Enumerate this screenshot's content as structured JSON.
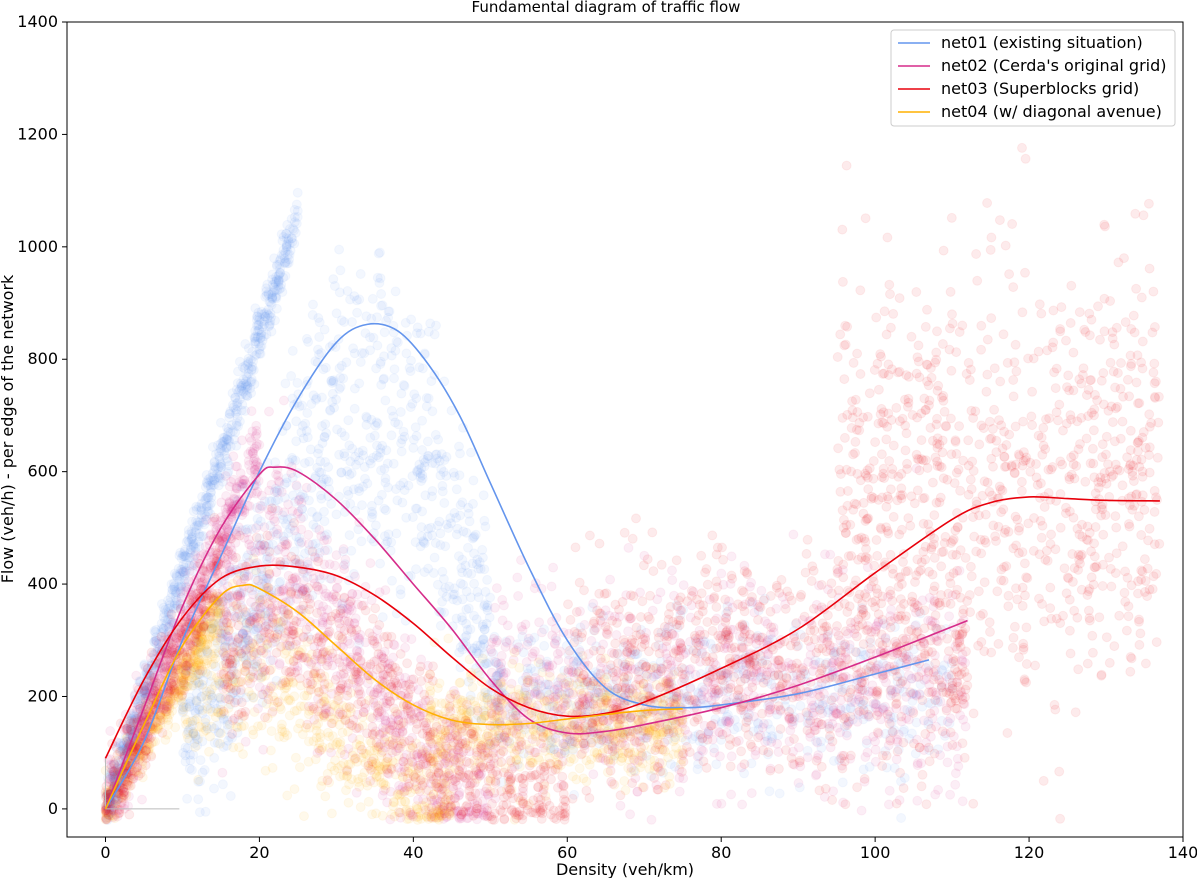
{
  "chart_data": {
    "type": "scatter",
    "title": "Fundamental diagram of traffic flow",
    "xlabel": "Density (veh/km)",
    "ylabel": "Flow (veh/h) - per edge of the network",
    "xlim": [
      -5,
      140
    ],
    "ylim": [
      -50,
      1400
    ],
    "xticks": [
      0,
      20,
      40,
      60,
      80,
      100,
      120,
      140
    ],
    "yticks": [
      0,
      200,
      400,
      600,
      800,
      1000,
      1200,
      1400
    ],
    "grid": false,
    "legend_position": "top-right",
    "series": [
      {
        "name": "net01 (existing situation)",
        "color": "#6495ED",
        "fit_curve": [
          [
            0,
            0
          ],
          [
            5,
            120
          ],
          [
            10,
            300
          ],
          [
            15,
            450
          ],
          [
            20,
            600
          ],
          [
            25,
            730
          ],
          [
            30,
            830
          ],
          [
            34,
            862
          ],
          [
            38,
            850
          ],
          [
            42,
            790
          ],
          [
            46,
            700
          ],
          [
            50,
            580
          ],
          [
            55,
            430
          ],
          [
            60,
            300
          ],
          [
            65,
            215
          ],
          [
            70,
            185
          ],
          [
            75,
            180
          ],
          [
            80,
            185
          ],
          [
            90,
            205
          ],
          [
            100,
            240
          ],
          [
            107,
            265
          ]
        ],
        "scatter_clouds": [
          {
            "x_range": [
              0,
              25
            ],
            "slope": 42,
            "spread": 25,
            "count": 700
          },
          {
            "x_range": [
              10,
              50
            ],
            "center": 860,
            "peak_x": 34,
            "spread": 140,
            "count": 900
          },
          {
            "x_range": [
              50,
              110
            ],
            "level": 200,
            "spread": 70,
            "count": 500
          }
        ]
      },
      {
        "name": "net02 (Cerda's original grid)",
        "color": "#D62C8A",
        "fit_curve": [
          [
            0,
            0
          ],
          [
            5,
            180
          ],
          [
            10,
            360
          ],
          [
            15,
            500
          ],
          [
            20,
            595
          ],
          [
            22,
            608
          ],
          [
            25,
            600
          ],
          [
            30,
            550
          ],
          [
            35,
            480
          ],
          [
            40,
            400
          ],
          [
            45,
            320
          ],
          [
            50,
            230
          ],
          [
            55,
            160
          ],
          [
            60,
            135
          ],
          [
            65,
            138
          ],
          [
            70,
            150
          ],
          [
            80,
            180
          ],
          [
            90,
            220
          ],
          [
            100,
            270
          ],
          [
            112,
            335
          ]
        ],
        "scatter_clouds": [
          {
            "x_range": [
              0,
              20
            ],
            "slope": 32,
            "spread": 40,
            "count": 600
          },
          {
            "x_range": [
              15,
              50
            ],
            "center": 500,
            "peak_x": 22,
            "spread": 150,
            "count": 700
          },
          {
            "x_range": [
              50,
              112
            ],
            "level": 220,
            "spread": 90,
            "count": 900
          }
        ]
      },
      {
        "name": "net03 (Superblocks grid)",
        "color": "#E8000B",
        "fit_curve": [
          [
            0,
            90
          ],
          [
            5,
            230
          ],
          [
            10,
            340
          ],
          [
            15,
            410
          ],
          [
            20,
            432
          ],
          [
            25,
            430
          ],
          [
            30,
            415
          ],
          [
            35,
            380
          ],
          [
            40,
            330
          ],
          [
            45,
            270
          ],
          [
            50,
            215
          ],
          [
            55,
            180
          ],
          [
            60,
            165
          ],
          [
            65,
            170
          ],
          [
            70,
            190
          ],
          [
            80,
            250
          ],
          [
            90,
            320
          ],
          [
            100,
            420
          ],
          [
            110,
            515
          ],
          [
            115,
            545
          ],
          [
            120,
            555
          ],
          [
            125,
            552
          ],
          [
            130,
            549
          ],
          [
            137,
            548
          ]
        ],
        "scatter_clouds": [
          {
            "x_range": [
              0,
              15
            ],
            "slope": 30,
            "spread": 40,
            "count": 300
          },
          {
            "x_range": [
              15,
              60
            ],
            "center": 380,
            "peak_x": 22,
            "spread": 120,
            "count": 600
          },
          {
            "x_range": [
              60,
              112
            ],
            "level": 250,
            "spread": 100,
            "count": 800
          },
          {
            "x_range": [
              95,
              137
            ],
            "level": 580,
            "spread": 190,
            "count": 900
          }
        ]
      },
      {
        "name": "net04 (w/ diagonal avenue)",
        "color": "#FFB000",
        "fit_curve": [
          [
            0,
            0
          ],
          [
            5,
            150
          ],
          [
            10,
            290
          ],
          [
            15,
            380
          ],
          [
            18,
            398
          ],
          [
            20,
            392
          ],
          [
            25,
            350
          ],
          [
            30,
            290
          ],
          [
            35,
            230
          ],
          [
            40,
            185
          ],
          [
            45,
            158
          ],
          [
            50,
            150
          ],
          [
            55,
            152
          ],
          [
            60,
            160
          ],
          [
            65,
            168
          ],
          [
            70,
            175
          ],
          [
            75,
            178
          ]
        ],
        "scatter_clouds": [
          {
            "x_range": [
              0,
              15
            ],
            "slope": 24,
            "spread": 25,
            "count": 500
          },
          {
            "x_range": [
              10,
              45
            ],
            "center": 300,
            "peak_x": 18,
            "spread": 110,
            "count": 600
          },
          {
            "x_range": [
              42,
              75
            ],
            "level": 150,
            "spread": 45,
            "count": 700
          }
        ]
      }
    ]
  }
}
